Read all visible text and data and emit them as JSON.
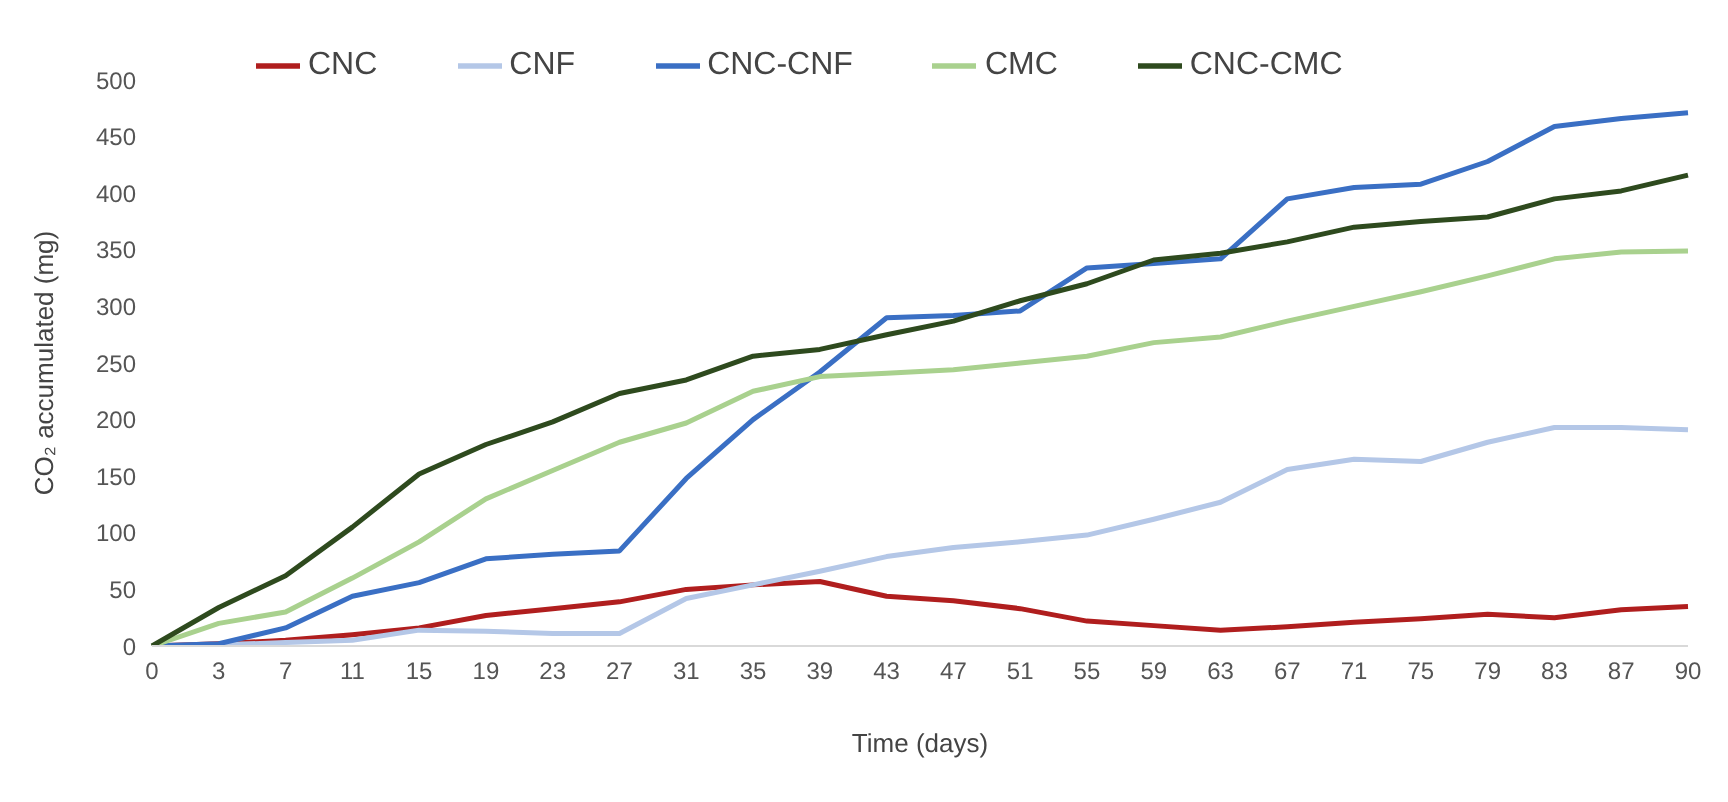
{
  "chart_data": {
    "type": "line",
    "xlabel": "Time (days)",
    "ylabel": "CO₂ accumulated (mg)",
    "categories": [
      "0",
      "3",
      "7",
      "11",
      "15",
      "19",
      "23",
      "27",
      "31",
      "35",
      "39",
      "43",
      "47",
      "51",
      "55",
      "59",
      "63",
      "67",
      "71",
      "75",
      "79",
      "83",
      "87",
      "90"
    ],
    "ylim": [
      0,
      500
    ],
    "yticks": [
      0,
      50,
      100,
      150,
      200,
      250,
      300,
      350,
      400,
      450,
      500
    ],
    "grid": false,
    "legend": "top left",
    "marker": "none",
    "line_style": "solid",
    "series": [
      {
        "name": "CNC",
        "color": "#b01e1e",
        "values": [
          0,
          2,
          5,
          10,
          16,
          27,
          33,
          39,
          50,
          54,
          57,
          44,
          40,
          33,
          22,
          18,
          14,
          17,
          21,
          24,
          28,
          25,
          32,
          35
        ]
      },
      {
        "name": "CNF",
        "color": "#b4c7e7",
        "values": [
          0,
          1,
          3,
          5,
          14,
          13,
          11,
          11,
          42,
          54,
          66,
          79,
          87,
          92,
          98,
          112,
          127,
          156,
          165,
          163,
          180,
          193,
          193,
          191
        ]
      },
      {
        "name": "CNC-CNF",
        "color": "#3a6fc4",
        "values": [
          0,
          2,
          16,
          44,
          56,
          77,
          81,
          84,
          148,
          200,
          242,
          290,
          292,
          296,
          334,
          338,
          342,
          395,
          405,
          408,
          428,
          459,
          466,
          471
        ]
      },
      {
        "name": "CMC",
        "color": "#a9d18e",
        "values": [
          0,
          20,
          30,
          60,
          92,
          130,
          155,
          180,
          197,
          225,
          238,
          241,
          244,
          250,
          256,
          268,
          273,
          287,
          300,
          313,
          327,
          342,
          348,
          349
        ]
      },
      {
        "name": "CNC-CMC",
        "color": "#2e4a1e",
        "values": [
          0,
          34,
          62,
          105,
          152,
          178,
          198,
          223,
          235,
          256,
          262,
          275,
          287,
          305,
          320,
          341,
          347,
          357,
          370,
          375,
          379,
          395,
          402,
          416
        ]
      }
    ]
  }
}
